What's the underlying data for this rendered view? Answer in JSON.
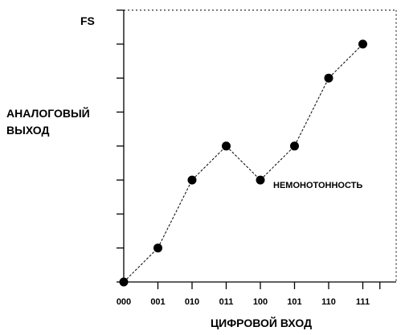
{
  "chart_data": {
    "type": "line",
    "title": "",
    "xlabel": "ЦИФРОВОЙ ВХОД",
    "ylabel_lines": [
      "АНАЛОГОВЫЙ",
      "ВЫХОД"
    ],
    "y_top_label": "FS",
    "x": [
      "000",
      "001",
      "010",
      "011",
      "100",
      "101",
      "110",
      "111"
    ],
    "values": [
      0,
      1,
      3,
      4,
      3,
      4,
      6,
      7
    ],
    "ylim": [
      0,
      8
    ],
    "y_ticks": [
      0,
      1,
      2,
      3,
      4,
      5,
      6,
      7,
      8
    ],
    "annotation": {
      "text": "НЕМОНОТОННОСТЬ",
      "at_index": 4
    },
    "line_style": "dashed",
    "grid": false
  }
}
